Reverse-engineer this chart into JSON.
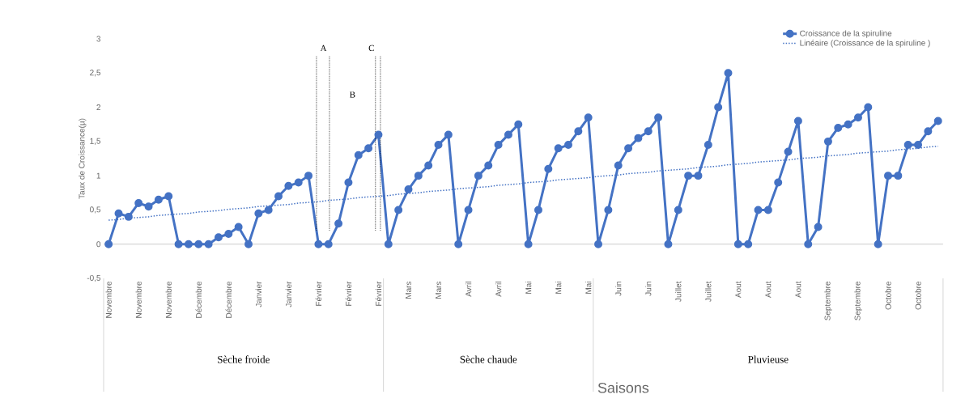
{
  "chart_data": {
    "type": "line",
    "xlabel": "Saisons",
    "ylabel": "Taux de Croissance(µ)",
    "categories": [
      "Novembre",
      null,
      null,
      "Novembre",
      null,
      null,
      "Novembre",
      null,
      null,
      "Décembre",
      null,
      null,
      "Décembre",
      null,
      null,
      "Janvier",
      null,
      null,
      "Janvier",
      null,
      null,
      "Février",
      null,
      null,
      "Février",
      null,
      null,
      "Février",
      null,
      null,
      "Mars",
      null,
      null,
      "Mars",
      null,
      null,
      "Avril",
      null,
      null,
      "Avril",
      null,
      null,
      "Mai",
      null,
      null,
      "Mai",
      null,
      null,
      "Mai",
      null,
      null,
      "Juin",
      null,
      null,
      "Juin",
      null,
      null,
      "Juillet",
      null,
      null,
      "Juillet",
      null,
      null,
      "Aout",
      null,
      null,
      "Aout",
      null,
      null,
      "Aout",
      null,
      null,
      "Septembre",
      null,
      null,
      "Septembre",
      null,
      null,
      "Octobre",
      null,
      null,
      "Octobre",
      null,
      null
    ],
    "series": [
      {
        "name": "Croissance de la spiruline",
        "color": "#4472c4",
        "marker": "circle",
        "line_style": "solid",
        "values": [
          0,
          0.45,
          0.4,
          0.6,
          0.55,
          0.65,
          0.7,
          0,
          0,
          0,
          0,
          0.1,
          0.15,
          0.25,
          0,
          0.45,
          0.5,
          0.7,
          0.85,
          0.9,
          1,
          0,
          0,
          0.3,
          0.9,
          1.3,
          1.4,
          1.6,
          0,
          0.5,
          0.8,
          1,
          1.15,
          1.45,
          1.6,
          0,
          0.5,
          1,
          1.15,
          1.45,
          1.6,
          1.75,
          0,
          0.5,
          1.1,
          1.4,
          1.45,
          1.65,
          1.85,
          0,
          0.5,
          1.15,
          1.4,
          1.55,
          1.65,
          1.85,
          0,
          0.5,
          1,
          1,
          1.45,
          2,
          2.5,
          0,
          0,
          0.5,
          0.5,
          0.9,
          1.35,
          1.8,
          0,
          0.25,
          1.5,
          1.7,
          1.75,
          1.85,
          2,
          0,
          1,
          1,
          1.45,
          1.45,
          1.65,
          1.8
        ]
      },
      {
        "name": "Linéaire (Croissance de la spiruline )",
        "type": "line",
        "color": "#4472c4",
        "marker": "none",
        "line_style": "dotted",
        "values": [
          0.35,
          0.36,
          0.38,
          0.39,
          0.4,
          0.42,
          0.43,
          0.44,
          0.45,
          0.47,
          0.48,
          0.49,
          0.51,
          0.52,
          0.53,
          0.55,
          0.56,
          0.57,
          0.58,
          0.6,
          0.61,
          0.62,
          0.64,
          0.65,
          0.66,
          0.68,
          0.69,
          0.7,
          0.71,
          0.73,
          0.74,
          0.75,
          0.77,
          0.78,
          0.79,
          0.81,
          0.82,
          0.83,
          0.84,
          0.86,
          0.87,
          0.88,
          0.9,
          0.91,
          0.92,
          0.94,
          0.95,
          0.96,
          0.97,
          0.99,
          1.0,
          1.01,
          1.03,
          1.04,
          1.05,
          1.07,
          1.08,
          1.09,
          1.1,
          1.12,
          1.13,
          1.14,
          1.16,
          1.17,
          1.18,
          1.2,
          1.21,
          1.22,
          1.23,
          1.25,
          1.26,
          1.27,
          1.29,
          1.3,
          1.31,
          1.33,
          1.34,
          1.35,
          1.36,
          1.38,
          1.39,
          1.4,
          1.42,
          1.43
        ]
      }
    ],
    "ylim": [
      -0.5,
      3
    ],
    "yticks": [
      {
        "value": -0.5,
        "label": "-0,5"
      },
      0,
      {
        "value": 0.5,
        "label": "0,5"
      },
      1,
      {
        "value": 1.5,
        "label": "1,5"
      },
      2,
      {
        "value": 2.5,
        "label": "2,5"
      },
      3
    ],
    "grid": false,
    "legend": "top right",
    "annotations": [
      "A",
      "B",
      "C",
      "Sèche froide",
      "Sèche chaude",
      "Pluvieuse"
    ]
  }
}
